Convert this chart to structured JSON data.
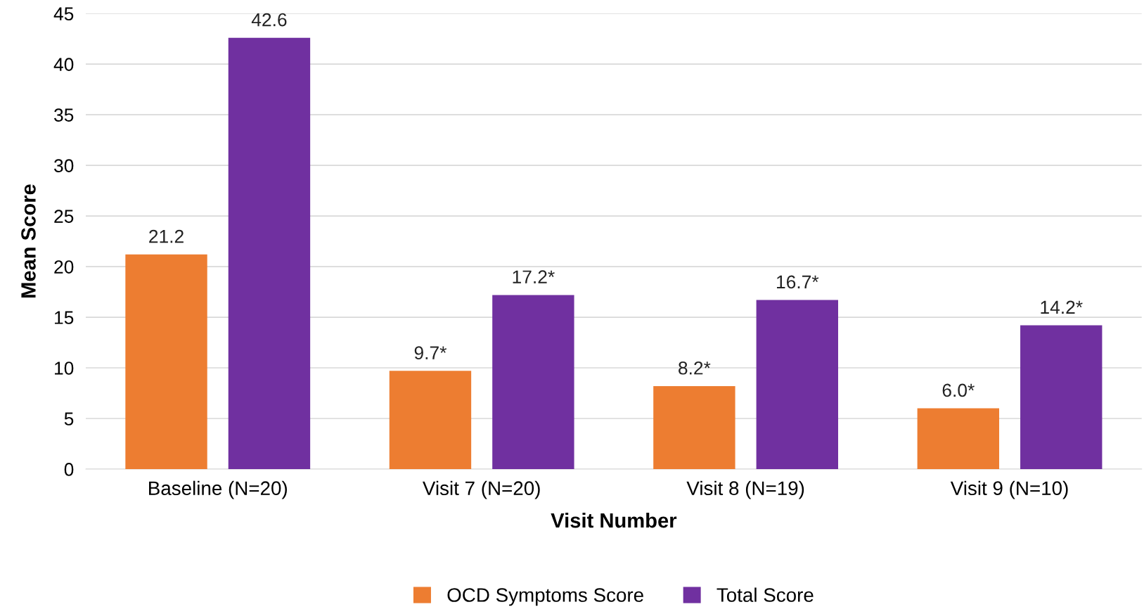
{
  "chart_data": {
    "type": "bar",
    "xlabel": "Visit Number",
    "ylabel": "Mean Score",
    "categories": [
      "Baseline (N=20)",
      "Visit 7 (N=20)",
      "Visit 8 (N=19)",
      "Visit 9 (N=10)"
    ],
    "series": [
      {
        "name": "OCD Symptoms Score",
        "color": "#ed7d31",
        "values": [
          21.2,
          9.7,
          8.2,
          6.0
        ],
        "value_labels": [
          "21.2",
          "9.7*",
          "8.2*",
          "6.0*"
        ]
      },
      {
        "name": "Total Score",
        "color": "#7030a0",
        "values": [
          42.6,
          17.2,
          16.7,
          14.2
        ],
        "value_labels": [
          "42.6",
          "17.2*",
          "16.7*",
          "14.2*"
        ]
      }
    ],
    "ylim": [
      0,
      45
    ],
    "yticks": [
      0,
      5,
      10,
      15,
      20,
      25,
      30,
      35,
      40,
      45
    ],
    "grid": "y",
    "legend": "bottom"
  }
}
